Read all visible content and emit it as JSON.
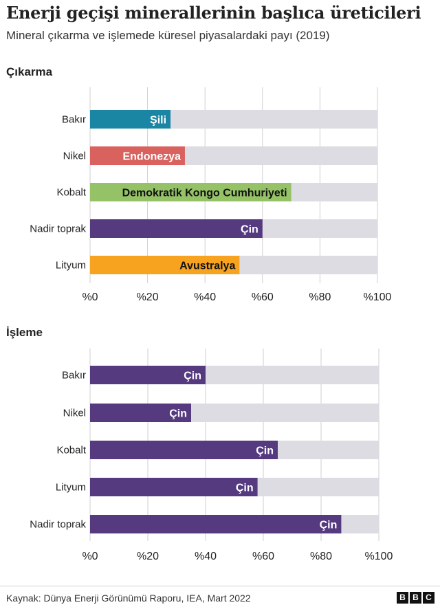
{
  "header": {
    "title": "Enerji geçişi minerallerinin başlıca üreticileri",
    "subtitle": "Mineral çıkarma ve işlemede küresel piyasalardaki payı (2019)"
  },
  "footer": {
    "source": "Kaynak: Dünya Enerji Görünümü Raporu, IEA, Mart 2022",
    "logo_letters": [
      "B",
      "B",
      "C"
    ]
  },
  "colors": {
    "background_bar": "#dcdce2",
    "gridline": "#cfcfcf",
    "teal": "#1b86a3",
    "red": "#d9625f",
    "green": "#96c267",
    "purple": "#553a80",
    "orange": "#f7a31f"
  },
  "chart_data": [
    {
      "type": "bar",
      "orientation": "horizontal",
      "stacked": false,
      "title": "Çıkarma",
      "categories": [
        "Bakır",
        "Nikel",
        "Kobalt",
        "Nadir toprak",
        "Lityum"
      ],
      "values": [
        28,
        33,
        70,
        60,
        52
      ],
      "bar_labels": [
        "Şili",
        "Endonezya",
        "Demokratik Kongo Cumhuriyeti",
        "Çin",
        "Avustralya"
      ],
      "bar_colors": [
        "#1b86a3",
        "#d9625f",
        "#96c267",
        "#553a80",
        "#f7a31f"
      ],
      "label_colors": [
        "#ffffff",
        "#ffffff",
        "#111111",
        "#ffffff",
        "#111111"
      ],
      "xlim": [
        0,
        100
      ],
      "xticks": [
        0,
        20,
        40,
        60,
        80,
        100
      ],
      "xtick_labels": [
        "%0",
        "%20",
        "%40",
        "%60",
        "%80",
        "%100"
      ],
      "xlabel": "",
      "ylabel": "",
      "grid": true
    },
    {
      "type": "bar",
      "orientation": "horizontal",
      "stacked": false,
      "title": "İşleme",
      "categories": [
        "Bakır",
        "Nikel",
        "Kobalt",
        "Lityum",
        "Nadir toprak"
      ],
      "values": [
        40,
        35,
        65,
        58,
        87
      ],
      "bar_labels": [
        "Çin",
        "Çin",
        "Çin",
        "Çin",
        "Çin"
      ],
      "bar_colors": [
        "#553a80",
        "#553a80",
        "#553a80",
        "#553a80",
        "#553a80"
      ],
      "label_colors": [
        "#ffffff",
        "#ffffff",
        "#ffffff",
        "#ffffff",
        "#ffffff"
      ],
      "xlim": [
        0,
        100
      ],
      "xticks": [
        0,
        20,
        40,
        60,
        80,
        100
      ],
      "xtick_labels": [
        "%0",
        "%20",
        "%40",
        "%60",
        "%80",
        "%100"
      ],
      "xlabel": "",
      "ylabel": "",
      "grid": true
    }
  ]
}
